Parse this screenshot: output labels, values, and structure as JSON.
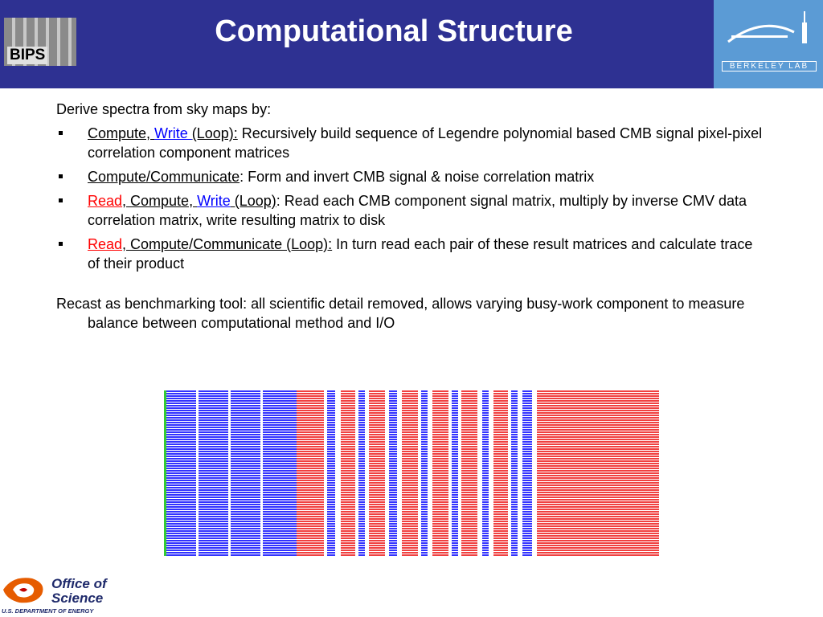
{
  "header": {
    "title": "Computational Structure",
    "left_logo": "BIPS",
    "right_logo": "Berkeley Lab"
  },
  "body": {
    "intro": "Derive spectra from sky maps by:",
    "bullets": [
      {
        "segments": [
          {
            "text": "Compute, ",
            "color": "#000000",
            "underline": true
          },
          {
            "text": "Write ",
            "color": "#0000ff",
            "underline": true
          },
          {
            "text": "(Loop):",
            "color": "#000000",
            "underline": true
          },
          {
            "text": " Recursively build sequence of Legendre polynomial based CMB signal pixel-pixel correlation component matrices",
            "color": "#000000",
            "underline": false
          }
        ]
      },
      {
        "segments": [
          {
            "text": "Compute/Communicate",
            "color": "#000000",
            "underline": true
          },
          {
            "text": ": Form and invert CMB signal & noise correlation matrix",
            "color": "#000000",
            "underline": false
          }
        ]
      },
      {
        "segments": [
          {
            "text": "Read",
            "color": "#ff0000",
            "underline": true
          },
          {
            "text": ", Compute, ",
            "color": "#000000",
            "underline": true
          },
          {
            "text": "Write",
            "color": "#0000ff",
            "underline": true
          },
          {
            "text": " (Loop)",
            "color": "#000000",
            "underline": true
          },
          {
            "text": ": Read each CMB component signal matrix, multiply by inverse CMV data correlation matrix, write resulting matrix to disk",
            "color": "#000000",
            "underline": false
          }
        ]
      },
      {
        "segments": [
          {
            "text": "Read",
            "color": "#ff0000",
            "underline": true
          },
          {
            "text": ", Compute/Communicate (Loop):",
            "color": "#000000",
            "underline": true
          },
          {
            "text": " In turn read each pair of these result matrices and calculate trace of their product",
            "color": "#000000",
            "underline": false
          }
        ]
      }
    ],
    "closing": "Recast as benchmarking tool: all scientific detail removed, allows varying busy-work component to measure balance between computational method and I/O"
  },
  "footer": {
    "logo_title": "Office of Science",
    "logo_subtitle": "U.S. DEPARTMENT OF ENERGY"
  }
}
